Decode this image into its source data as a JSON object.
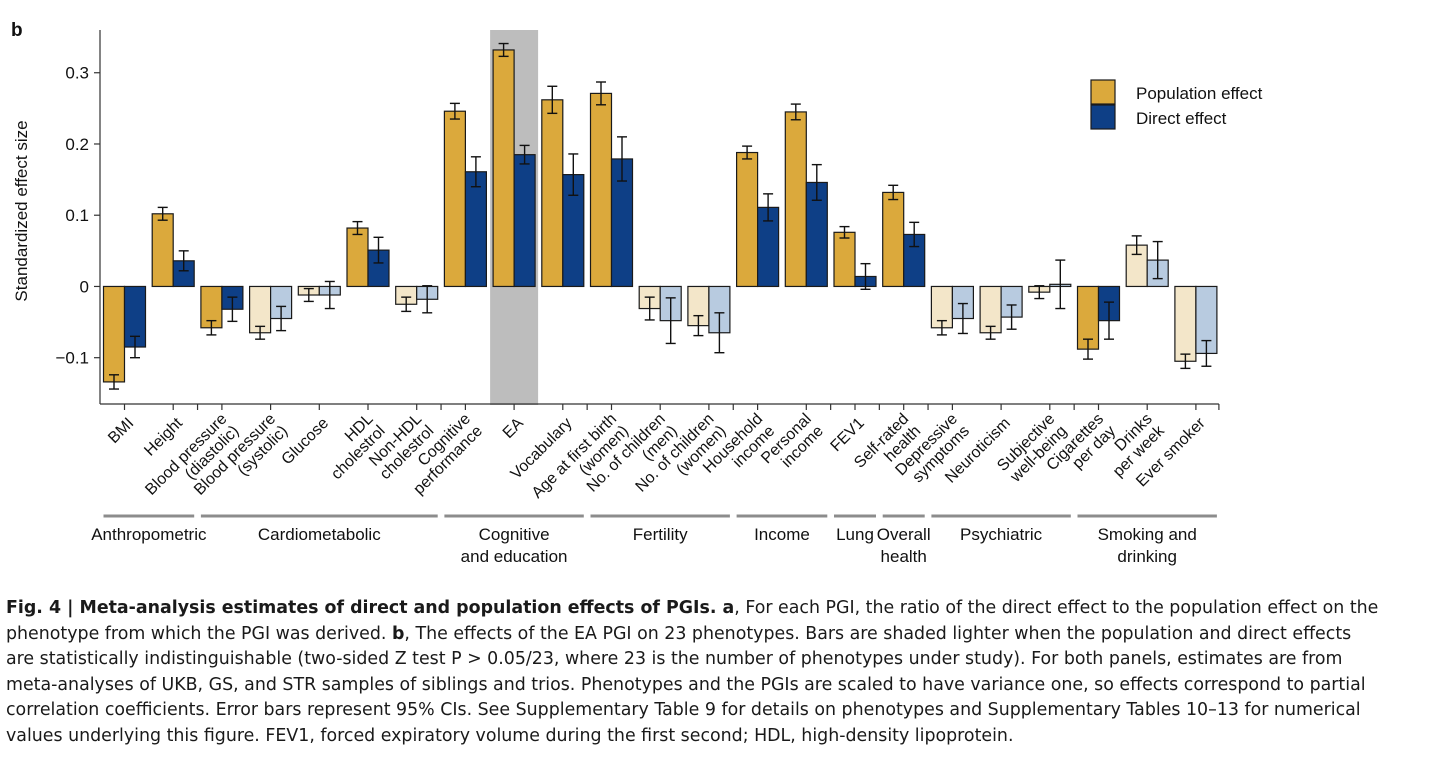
{
  "panel_label": "b",
  "chart_data": {
    "type": "bar",
    "ylabel": "Standardized effect size",
    "xlabel": "",
    "ylim": [
      -0.165,
      0.36
    ],
    "yticks": [
      -0.1,
      0,
      0.1,
      0.2,
      0.3
    ],
    "ytick_labels": [
      "−0.1",
      "0",
      "0.1",
      "0.2",
      "0.3"
    ],
    "highlighted_category": "EA",
    "legend": {
      "placement": "top-right",
      "entries": [
        {
          "label": "Direct effect",
          "color": "#0e3f86"
        },
        {
          "label": "Population effect",
          "color": "#dba93c"
        }
      ]
    },
    "colors": {
      "population": "#dba93c",
      "direct": "#0e3f86",
      "population_light": "#f3e6c9",
      "direct_light": "#b8cbe0",
      "highlight": "#bdbdbd"
    },
    "categories": [
      "BMI",
      "Height",
      "Blood pressure (diastolic)",
      "Blood pressure (systolic)",
      "Glucose",
      "HDL cholestrol",
      "Non-HDL cholestrol",
      "Cognitive performance",
      "EA",
      "Vocabulary",
      "Age at first birth (women)",
      "No. of children (men)",
      "No. of children (women)",
      "Household income",
      "Personal income",
      "FEV1",
      "Self-rated health",
      "Depressive symptoms",
      "Neuroticism",
      "Subjective well-being",
      "Cigarettes per day",
      "Drinks per week",
      "Ever smoker"
    ],
    "category_labels": [
      [
        "BMI"
      ],
      [
        "Height"
      ],
      [
        "Blood pressure",
        "(diastolic)"
      ],
      [
        "Blood pressure",
        "(systolic)"
      ],
      [
        "Glucose"
      ],
      [
        "HDL",
        "cholestrol"
      ],
      [
        "Non-HDL",
        "cholestrol"
      ],
      [
        "Cognitive",
        "performance"
      ],
      [
        "EA"
      ],
      [
        "Vocabulary"
      ],
      [
        "Age at first birth",
        "(women)"
      ],
      [
        "No. of children",
        "(men)"
      ],
      [
        "No. of children",
        "(women)"
      ],
      [
        "Household",
        "income"
      ],
      [
        "Personal",
        "income"
      ],
      [
        "FEV1"
      ],
      [
        "Self-rated",
        "health"
      ],
      [
        "Depressive",
        "symptoms"
      ],
      [
        "Neuroticism"
      ],
      [
        "Subjective",
        "well-being"
      ],
      [
        "Cigarettes",
        "per day"
      ],
      [
        "Drinks",
        "per week"
      ],
      [
        "Ever smoker"
      ]
    ],
    "groups": [
      {
        "name": [
          "Anthropometric"
        ],
        "start": 0,
        "end": 1
      },
      {
        "name": [
          "Cardiometabolic"
        ],
        "start": 2,
        "end": 6
      },
      {
        "name": [
          "Cognitive",
          "and education"
        ],
        "start": 7,
        "end": 9
      },
      {
        "name": [
          "Fertility"
        ],
        "start": 10,
        "end": 12
      },
      {
        "name": [
          "Income"
        ],
        "start": 13,
        "end": 14
      },
      {
        "name": [
          "Lung"
        ],
        "start": 15,
        "end": 15
      },
      {
        "name": [
          "Overall",
          "health"
        ],
        "start": 16,
        "end": 16
      },
      {
        "name": [
          "Psychiatric"
        ],
        "start": 17,
        "end": 19
      },
      {
        "name": [
          "Smoking and",
          "drinking"
        ],
        "start": 20,
        "end": 22
      }
    ],
    "series": [
      {
        "name": "Population effect",
        "values": [
          -0.134,
          0.102,
          -0.058,
          -0.065,
          -0.012,
          0.082,
          -0.025,
          0.246,
          0.332,
          0.262,
          0.271,
          -0.031,
          -0.055,
          0.188,
          0.245,
          0.076,
          0.132,
          -0.058,
          -0.065,
          -0.008,
          -0.088,
          0.058,
          -0.105
        ],
        "ci_low": [
          -0.144,
          0.093,
          -0.068,
          -0.074,
          -0.021,
          0.073,
          -0.035,
          0.235,
          0.323,
          0.243,
          0.255,
          -0.047,
          -0.069,
          0.179,
          0.234,
          0.068,
          0.122,
          -0.068,
          -0.074,
          -0.017,
          -0.102,
          0.045,
          -0.115
        ],
        "ci_high": [
          -0.124,
          0.111,
          -0.048,
          -0.056,
          -0.003,
          0.091,
          -0.015,
          0.257,
          0.341,
          0.281,
          0.287,
          -0.015,
          -0.041,
          0.197,
          0.256,
          0.084,
          0.142,
          -0.048,
          -0.056,
          0.001,
          -0.074,
          0.071,
          -0.095
        ],
        "light": [
          false,
          false,
          false,
          true,
          true,
          false,
          true,
          false,
          false,
          false,
          false,
          true,
          true,
          false,
          false,
          false,
          false,
          true,
          true,
          true,
          false,
          true,
          true
        ]
      },
      {
        "name": "Direct effect",
        "values": [
          -0.085,
          0.036,
          -0.032,
          -0.045,
          -0.012,
          0.051,
          -0.018,
          0.161,
          0.185,
          0.157,
          0.179,
          -0.048,
          -0.065,
          0.111,
          0.146,
          0.014,
          0.073,
          -0.045,
          -0.043,
          0.003,
          -0.048,
          0.037,
          -0.094
        ],
        "ci_low": [
          -0.1,
          0.022,
          -0.049,
          -0.062,
          -0.031,
          0.033,
          -0.037,
          0.14,
          0.172,
          0.128,
          0.148,
          -0.08,
          -0.093,
          0.092,
          0.121,
          -0.004,
          0.056,
          -0.066,
          -0.06,
          -0.031,
          -0.074,
          0.011,
          -0.112
        ],
        "ci_high": [
          -0.07,
          0.05,
          -0.015,
          -0.028,
          0.007,
          0.069,
          0.001,
          0.182,
          0.198,
          0.186,
          0.21,
          -0.016,
          -0.037,
          0.13,
          0.171,
          0.032,
          0.09,
          -0.024,
          -0.026,
          0.037,
          -0.022,
          0.063,
          -0.076
        ],
        "light": [
          false,
          false,
          false,
          true,
          true,
          false,
          true,
          false,
          false,
          false,
          false,
          true,
          true,
          false,
          false,
          false,
          false,
          true,
          true,
          true,
          false,
          true,
          true
        ]
      }
    ]
  },
  "caption": {
    "lines": [
      [
        {
          "b": true,
          "t": "Fig. 4 | Meta-analysis estimates of direct and population effects of PGIs. a"
        },
        {
          "b": false,
          "t": ", For each PGI, the ratio of the direct effect to the population effect on the"
        }
      ],
      [
        {
          "b": false,
          "t": "phenotype from which the PGI was derived. "
        },
        {
          "b": true,
          "t": "b"
        },
        {
          "b": false,
          "t": ", The effects of the EA PGI on 23 phenotypes. Bars are shaded lighter when the population and direct effects"
        }
      ],
      [
        {
          "b": false,
          "t": "are statistically indistinguishable (two-sided Z test P > 0.05/23, where 23 is the number of phenotypes under study). For both panels, estimates are from"
        }
      ],
      [
        {
          "b": false,
          "t": "meta-analyses of UKB, GS, and STR samples of siblings and trios. Phenotypes and the PGIs are scaled to have variance one, so effects correspond to partial"
        }
      ],
      [
        {
          "b": false,
          "t": "correlation coefficients. Error bars represent 95% CIs. See Supplementary Table 9 for details on phenotypes and Supplementary Tables 10–13 for numerical"
        }
      ],
      [
        {
          "b": false,
          "t": "values underlying this figure. FEV1, forced expiratory volume during the first second; HDL, high-density lipoprotein."
        }
      ]
    ]
  }
}
